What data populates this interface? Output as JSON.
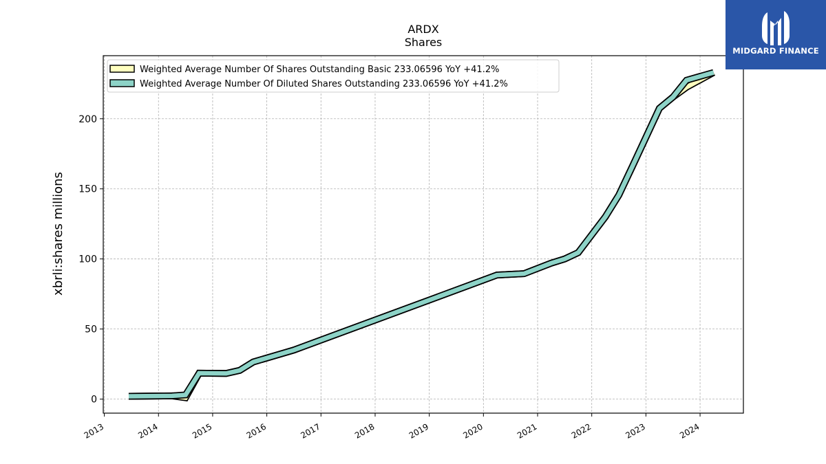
{
  "brand": {
    "name": "MIDGARD FINANCE",
    "color": "#2a56a8"
  },
  "chart_data": {
    "type": "line",
    "title": "ARDX",
    "subtitle": "Shares",
    "xlabel": "",
    "ylabel": "xbrli:shares millions",
    "xlim": [
      2012.98,
      2024.8
    ],
    "ylim": [
      -10,
      245
    ],
    "y_ticks": [
      0,
      50,
      100,
      150,
      200
    ],
    "x_ticks": [
      2013,
      2014,
      2015,
      2016,
      2017,
      2018,
      2019,
      2020,
      2021,
      2022,
      2023,
      2024
    ],
    "grid": true,
    "legend_position": "upper-left",
    "series": [
      {
        "name": "Weighted Average Number Of Shares Outstanding Basic  233.06596 YoY +41.2%",
        "color": "#ffffbf",
        "points": [
          [
            2013.45,
            2.0
          ],
          [
            2014.25,
            2.3
          ],
          [
            2014.5,
            1.0
          ],
          [
            2014.75,
            18.5
          ],
          [
            2015.25,
            18.3
          ],
          [
            2015.5,
            20.5
          ],
          [
            2015.75,
            26.5
          ],
          [
            2016.5,
            35.0
          ],
          [
            2020.25,
            88.5
          ],
          [
            2020.75,
            89.5
          ],
          [
            2021.25,
            97.0
          ],
          [
            2021.5,
            100.0
          ],
          [
            2021.75,
            104.5
          ],
          [
            2022.25,
            130.0
          ],
          [
            2022.5,
            145.5
          ],
          [
            2022.75,
            166.0
          ],
          [
            2023.25,
            207.5
          ],
          [
            2023.5,
            215.5
          ],
          [
            2023.75,
            222.5
          ],
          [
            2024.25,
            233.0
          ]
        ]
      },
      {
        "name": "Weighted Average Number Of Diluted Shares Outstanding  233.06596 YoY +41.2%",
        "color": "#8dd3c7",
        "points": [
          [
            2013.45,
            2.0
          ],
          [
            2014.25,
            2.3
          ],
          [
            2014.5,
            3.0
          ],
          [
            2014.75,
            18.5
          ],
          [
            2015.25,
            18.3
          ],
          [
            2015.5,
            20.5
          ],
          [
            2015.75,
            26.5
          ],
          [
            2016.5,
            35.0
          ],
          [
            2020.25,
            88.5
          ],
          [
            2020.75,
            89.5
          ],
          [
            2021.25,
            97.0
          ],
          [
            2021.5,
            100.0
          ],
          [
            2021.75,
            104.5
          ],
          [
            2022.25,
            130.0
          ],
          [
            2022.5,
            145.5
          ],
          [
            2022.75,
            166.0
          ],
          [
            2023.25,
            207.5
          ],
          [
            2023.5,
            215.5
          ],
          [
            2023.75,
            227.5
          ],
          [
            2024.25,
            233.0
          ]
        ]
      }
    ]
  }
}
